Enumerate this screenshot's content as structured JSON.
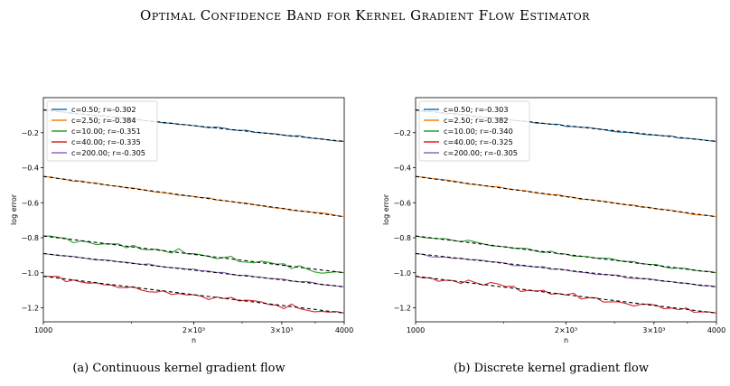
{
  "header": {
    "title": "Optimal Confidence Band for Kernel Gradient Flow Estimator"
  },
  "captions": [
    "(a) Continuous kernel gradient flow",
    "(b) Discrete kernel gradient flow"
  ],
  "colors": {
    "c0.5": "#1f77b4",
    "c2.5": "#ff7f0e",
    "c10": "#2ca02c",
    "c40": "#d62728",
    "c200": "#9467bd",
    "fit": "#000000"
  },
  "chart_data": [
    {
      "type": "line",
      "title": "",
      "xlabel": "n",
      "ylabel": "log error",
      "xscale": "log",
      "xlim": [
        1000,
        4000
      ],
      "ylim": [
        -1.28,
        0.0
      ],
      "xticks": [
        {
          "value": 1000,
          "label": "1000"
        },
        {
          "value": 2000,
          "label": "2×10³"
        },
        {
          "value": 3000,
          "label": "3×10³"
        },
        {
          "value": 4000,
          "label": "4000"
        }
      ],
      "yticks": [
        {
          "value": -0.2,
          "label": "−0.2"
        },
        {
          "value": -0.4,
          "label": "−0.4"
        },
        {
          "value": -0.6,
          "label": "−0.6"
        },
        {
          "value": -0.8,
          "label": "−0.8"
        },
        {
          "value": -1.0,
          "label": "−1.0"
        },
        {
          "value": -1.2,
          "label": "−1.2"
        }
      ],
      "legend_position": "top-left",
      "fit_style": "dashed black",
      "series": [
        {
          "name": "c=0.50; r=-0.302",
          "color_key": "c0.5",
          "y_start": -0.07,
          "y_end": -0.25,
          "noise": 0.004
        },
        {
          "name": "c=2.50; r=-0.384",
          "color_key": "c2.5",
          "y_start": -0.45,
          "y_end": -0.68,
          "noise": 0.004
        },
        {
          "name": "c=10.00; r=-0.351",
          "color_key": "c10",
          "y_start": -0.79,
          "y_end": -1.0,
          "noise": 0.014
        },
        {
          "name": "c=40.00; r=-0.335",
          "color_key": "c40",
          "y_start": -1.02,
          "y_end": -1.23,
          "noise": 0.014
        },
        {
          "name": "c=200.00; r=-0.305",
          "color_key": "c200",
          "y_start": -0.89,
          "y_end": -1.08,
          "noise": 0.006
        }
      ]
    },
    {
      "type": "line",
      "title": "",
      "xlabel": "n",
      "ylabel": "log error",
      "xscale": "log",
      "xlim": [
        1000,
        4000
      ],
      "ylim": [
        -1.28,
        0.0
      ],
      "xticks": [
        {
          "value": 1000,
          "label": "1000"
        },
        {
          "value": 2000,
          "label": "2×10³"
        },
        {
          "value": 3000,
          "label": "3×10³"
        },
        {
          "value": 4000,
          "label": "4000"
        }
      ],
      "yticks": [
        {
          "value": -0.2,
          "label": "−0.2"
        },
        {
          "value": -0.4,
          "label": "−0.4"
        },
        {
          "value": -0.6,
          "label": "−0.6"
        },
        {
          "value": -0.8,
          "label": "−0.8"
        },
        {
          "value": -1.0,
          "label": "−1.0"
        },
        {
          "value": -1.2,
          "label": "−1.2"
        }
      ],
      "legend_position": "top-left",
      "fit_style": "dashed black",
      "series": [
        {
          "name": "c=0.50; r=-0.303",
          "color_key": "c0.5",
          "y_start": -0.07,
          "y_end": -0.25,
          "noise": 0.004
        },
        {
          "name": "c=2.50; r=-0.382",
          "color_key": "c2.5",
          "y_start": -0.45,
          "y_end": -0.68,
          "noise": 0.004
        },
        {
          "name": "c=10.00; r=-0.340",
          "color_key": "c10",
          "y_start": -0.79,
          "y_end": -1.0,
          "noise": 0.008
        },
        {
          "name": "c=40.00; r=-0.325",
          "color_key": "c40",
          "y_start": -1.02,
          "y_end": -1.23,
          "noise": 0.012
        },
        {
          "name": "c=200.00; r=-0.305",
          "color_key": "c200",
          "y_start": -0.89,
          "y_end": -1.08,
          "noise": 0.006
        }
      ]
    }
  ]
}
